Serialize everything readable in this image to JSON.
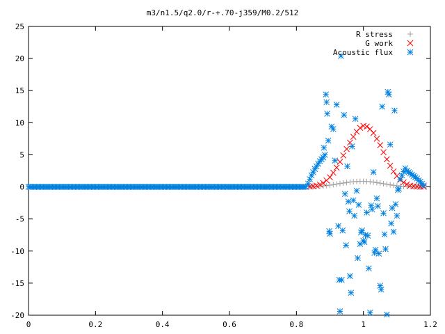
{
  "chart_data": {
    "type": "scatter",
    "title": "m3/n1.5/q2.0/r-+.70-j359/M0.2/512",
    "xlabel": "",
    "ylabel": "",
    "xlim": [
      0,
      1.2
    ],
    "ylim": [
      -20,
      25
    ],
    "grid": false,
    "legend_position": "top-right",
    "x_ticks": [
      "0",
      "0.2",
      "0.4",
      "0.6",
      "0.8",
      "1",
      "1.2"
    ],
    "y_ticks": [
      "25",
      "20",
      "15",
      "10",
      "5",
      "0",
      "-5",
      "-10",
      "-15",
      "-20"
    ],
    "series": [
      {
        "name": "R stress",
        "marker": "plus",
        "color": "#a0a0a0",
        "points": [
          [
            0.84,
            0.02
          ],
          [
            0.85,
            0.04
          ],
          [
            0.86,
            0.07
          ],
          [
            0.87,
            0.1
          ],
          [
            0.88,
            0.15
          ],
          [
            0.89,
            0.2
          ],
          [
            0.9,
            0.27
          ],
          [
            0.91,
            0.35
          ],
          [
            0.92,
            0.43
          ],
          [
            0.93,
            0.52
          ],
          [
            0.94,
            0.6
          ],
          [
            0.95,
            0.68
          ],
          [
            0.96,
            0.75
          ],
          [
            0.97,
            0.8
          ],
          [
            0.98,
            0.84
          ],
          [
            0.99,
            0.86
          ],
          [
            1.0,
            0.86
          ],
          [
            1.01,
            0.84
          ],
          [
            1.02,
            0.8
          ],
          [
            1.03,
            0.74
          ],
          [
            1.04,
            0.67
          ],
          [
            1.05,
            0.58
          ],
          [
            1.06,
            0.49
          ],
          [
            1.07,
            0.4
          ],
          [
            1.08,
            0.32
          ],
          [
            1.09,
            0.24
          ],
          [
            1.1,
            0.18
          ],
          [
            1.11,
            0.12
          ],
          [
            1.12,
            0.08
          ],
          [
            1.13,
            0.05
          ],
          [
            1.14,
            0.03
          ],
          [
            1.15,
            0.02
          ],
          [
            1.16,
            0.01
          ],
          [
            1.17,
            0.0
          ]
        ]
      },
      {
        "name": "G work",
        "marker": "cross",
        "color": "#ff0000",
        "points": [
          [
            0.84,
            0.05
          ],
          [
            0.85,
            0.1
          ],
          [
            0.86,
            0.2
          ],
          [
            0.87,
            0.35
          ],
          [
            0.88,
            0.6
          ],
          [
            0.89,
            1.0
          ],
          [
            0.9,
            1.5
          ],
          [
            0.91,
            2.2
          ],
          [
            0.92,
            3.0
          ],
          [
            0.93,
            3.9
          ],
          [
            0.94,
            4.9
          ],
          [
            0.95,
            5.9
          ],
          [
            0.96,
            6.9
          ],
          [
            0.97,
            7.8
          ],
          [
            0.98,
            8.6
          ],
          [
            0.99,
            9.2
          ],
          [
            1.0,
            9.5
          ],
          [
            1.01,
            9.4
          ],
          [
            1.02,
            9.0
          ],
          [
            1.03,
            8.4
          ],
          [
            1.04,
            7.5
          ],
          [
            1.05,
            6.5
          ],
          [
            1.06,
            5.4
          ],
          [
            1.07,
            4.3
          ],
          [
            1.08,
            3.3
          ],
          [
            1.09,
            2.4
          ],
          [
            1.1,
            1.7
          ],
          [
            1.11,
            1.1
          ],
          [
            1.12,
            0.7
          ],
          [
            1.13,
            0.4
          ],
          [
            1.14,
            0.2
          ],
          [
            1.15,
            0.1
          ],
          [
            1.16,
            0.05
          ],
          [
            1.17,
            0.02
          ],
          [
            1.18,
            0.0
          ]
        ]
      },
      {
        "name": "Acoustic flux",
        "marker": "asterisk",
        "color": "#0080e0",
        "baseline_x_range": [
          0.0,
          0.83
        ],
        "baseline_step": 0.004,
        "points": [
          [
            0.835,
            0.5
          ],
          [
            0.84,
            1.2
          ],
          [
            0.845,
            1.8
          ],
          [
            0.85,
            2.3
          ],
          [
            0.855,
            2.8
          ],
          [
            0.86,
            3.2
          ],
          [
            0.865,
            3.6
          ],
          [
            0.87,
            4.0
          ],
          [
            0.875,
            4.3
          ],
          [
            0.88,
            4.6
          ],
          [
            0.885,
            5.0
          ],
          [
            0.882,
            6.1
          ],
          [
            0.888,
            14.4
          ],
          [
            0.89,
            13.2
          ],
          [
            0.892,
            11.4
          ],
          [
            0.895,
            7.2
          ],
          [
            0.898,
            -6.9
          ],
          [
            0.9,
            -7.3
          ],
          [
            0.905,
            9.4
          ],
          [
            0.91,
            9.0
          ],
          [
            0.915,
            4.1
          ],
          [
            0.92,
            12.8
          ],
          [
            0.925,
            -6.1
          ],
          [
            0.928,
            -14.5
          ],
          [
            0.93,
            -19.4
          ],
          [
            0.933,
            20.4
          ],
          [
            0.935,
            -14.5
          ],
          [
            0.938,
            -6.8
          ],
          [
            0.942,
            11.2
          ],
          [
            0.945,
            -1.1
          ],
          [
            0.948,
            -9.1
          ],
          [
            0.952,
            3.2
          ],
          [
            0.955,
            -2.3
          ],
          [
            0.958,
            -3.8
          ],
          [
            0.96,
            -13.9
          ],
          [
            0.963,
            -16.5
          ],
          [
            0.966,
            6.3
          ],
          [
            0.97,
            -2.1
          ],
          [
            0.973,
            -4.5
          ],
          [
            0.976,
            10.6
          ],
          [
            0.98,
            -0.6
          ],
          [
            0.983,
            -11.1
          ],
          [
            0.986,
            -2.8
          ],
          [
            0.99,
            -8.9
          ],
          [
            0.993,
            -7.1
          ],
          [
            0.996,
            -6.8
          ],
          [
            1.0,
            -8.4
          ],
          [
            1.003,
            -8.6
          ],
          [
            1.006,
            -7.5
          ],
          [
            1.01,
            -4.0
          ],
          [
            1.013,
            -7.6
          ],
          [
            1.016,
            -12.7
          ],
          [
            1.02,
            -19.6
          ],
          [
            1.023,
            -2.9
          ],
          [
            1.026,
            -3.5
          ],
          [
            1.03,
            2.3
          ],
          [
            1.033,
            -10.3
          ],
          [
            1.036,
            -9.8
          ],
          [
            1.04,
            -1.8
          ],
          [
            1.043,
            -3.0
          ],
          [
            1.046,
            -10.4
          ],
          [
            1.05,
            -15.4
          ],
          [
            1.053,
            -16.0
          ],
          [
            1.056,
            12.5
          ],
          [
            1.06,
            -4.1
          ],
          [
            1.063,
            -7.4
          ],
          [
            1.066,
            -9.7
          ],
          [
            1.07,
            -19.9
          ],
          [
            1.073,
            14.8
          ],
          [
            1.076,
            14.4
          ],
          [
            1.08,
            6.6
          ],
          [
            1.083,
            -5.7
          ],
          [
            1.086,
            -3.3
          ],
          [
            1.09,
            -7.0
          ],
          [
            1.093,
            11.9
          ],
          [
            1.096,
            -2.7
          ],
          [
            1.1,
            -4.5
          ],
          [
            1.103,
            -0.5
          ],
          [
            1.106,
            -0.3
          ],
          [
            1.11,
            1.2
          ],
          [
            1.115,
            1.8
          ],
          [
            1.12,
            2.4
          ],
          [
            1.125,
            2.9
          ],
          [
            1.13,
            2.5
          ],
          [
            1.135,
            2.3
          ],
          [
            1.14,
            2.1
          ],
          [
            1.145,
            1.9
          ],
          [
            1.15,
            1.7
          ],
          [
            1.155,
            1.5
          ],
          [
            1.16,
            1.3
          ],
          [
            1.165,
            1.0
          ],
          [
            1.17,
            0.8
          ],
          [
            1.175,
            0.5
          ],
          [
            1.18,
            0.2
          ]
        ]
      }
    ]
  }
}
